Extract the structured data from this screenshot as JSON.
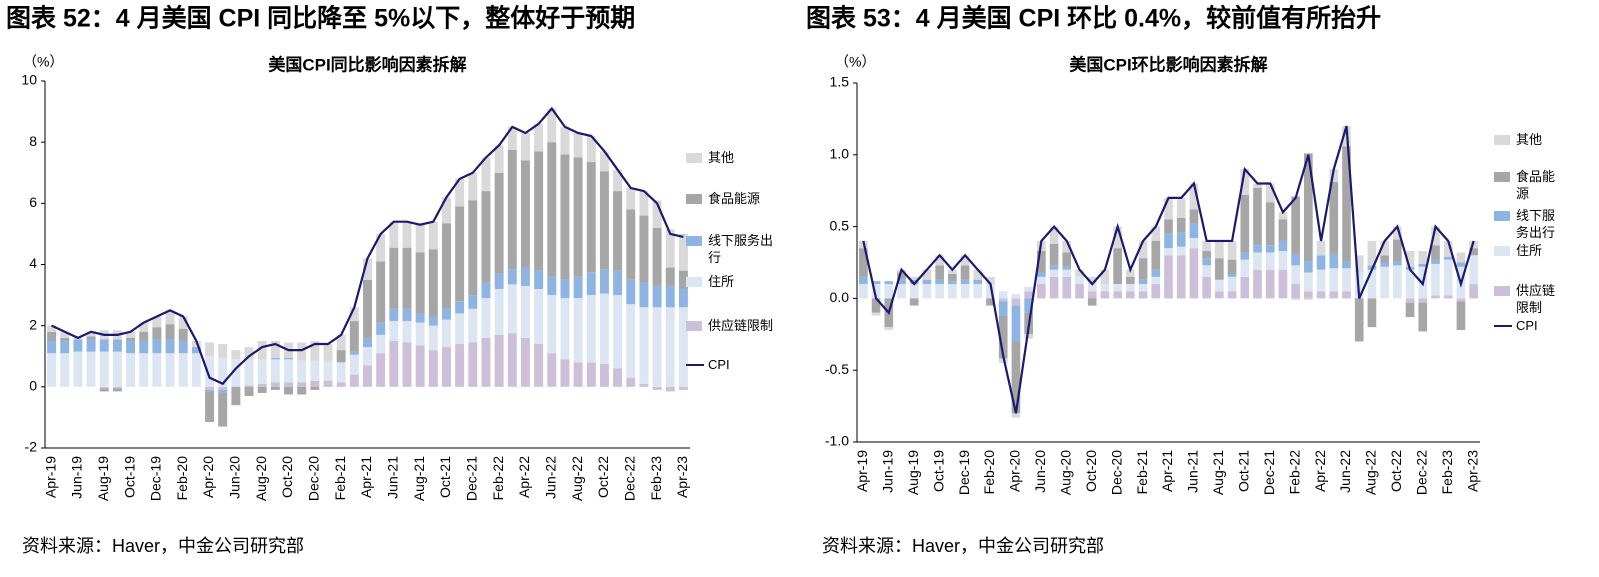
{
  "chart_data": [
    {
      "type": "bar",
      "caption": "图表 52：4 月美国 CPI 同比降至 5%以下，整体好于预期",
      "title": "美国CPI同比影响因素拆解",
      "y_unit": "（%）",
      "source": "资料来源：Haver，中金公司研究部",
      "categories": [
        "Apr-19",
        null,
        "Jun-19",
        null,
        "Aug-19",
        null,
        "Oct-19",
        null,
        "Dec-19",
        null,
        "Feb-20",
        null,
        "Apr-20",
        null,
        "Jun-20",
        null,
        "Aug-20",
        null,
        "Oct-20",
        null,
        "Dec-20",
        null,
        "Feb-21",
        null,
        "Apr-21",
        null,
        "Jun-21",
        null,
        "Aug-21",
        null,
        "Oct-21",
        null,
        "Dec-21",
        null,
        "Feb-22",
        null,
        "Apr-22",
        null,
        "Jun-22",
        null,
        "Aug-22",
        null,
        "Oct-22",
        null,
        "Dec-22",
        null,
        "Feb-23",
        null,
        "Apr-23"
      ],
      "ylim": [
        -2,
        10
      ],
      "yticks": [
        -2,
        0,
        2,
        4,
        6,
        8,
        10
      ],
      "negative_tick_color": "#ff0000",
      "series": [
        {
          "name": "供应链限制",
          "color": "#cdbfd9",
          "values": [
            0,
            0,
            0,
            0,
            -0.05,
            -0.05,
            0,
            0,
            0,
            0,
            0,
            0,
            -0.1,
            -0.1,
            0,
            0.05,
            0.1,
            0.15,
            0.15,
            0.15,
            0.2,
            0.2,
            0.15,
            0.4,
            0.7,
            1.1,
            1.5,
            1.45,
            1.35,
            1.2,
            1.3,
            1.4,
            1.45,
            1.6,
            1.7,
            1.75,
            1.6,
            1.4,
            1.1,
            0.9,
            0.8,
            0.8,
            0.75,
            0.6,
            0.3,
            0.1,
            -0.1,
            -0.15,
            -0.1
          ]
        },
        {
          "name": "住所",
          "color": "#dce6f2",
          "values": [
            1.1,
            1.1,
            1.15,
            1.15,
            1.15,
            1.15,
            1.1,
            1.1,
            1.1,
            1.1,
            1.1,
            1.1,
            1.0,
            0.95,
            0.9,
            0.85,
            0.8,
            0.75,
            0.75,
            0.7,
            0.65,
            0.65,
            0.65,
            0.65,
            0.6,
            0.6,
            0.65,
            0.7,
            0.75,
            0.8,
            0.9,
            1.0,
            1.1,
            1.3,
            1.5,
            1.6,
            1.7,
            1.8,
            1.9,
            2.0,
            2.1,
            2.2,
            2.3,
            2.4,
            2.4,
            2.5,
            2.6,
            2.6,
            2.6
          ]
        },
        {
          "name": "线下服务出行",
          "color": "#8eb4e3",
          "values": [
            0.4,
            0.4,
            0.4,
            0.4,
            0.4,
            0.4,
            0.4,
            0.4,
            0.45,
            0.45,
            0.4,
            0.2,
            -0.05,
            -0.1,
            0,
            0,
            0,
            0.05,
            0.05,
            0,
            0,
            0,
            0,
            0.1,
            0.3,
            0.4,
            0.4,
            0.4,
            0.3,
            0.3,
            0.35,
            0.4,
            0.45,
            0.5,
            0.5,
            0.5,
            0.6,
            0.6,
            0.6,
            0.6,
            0.7,
            0.75,
            0.8,
            0.8,
            0.8,
            0.8,
            0.7,
            0.7,
            0.6
          ]
        },
        {
          "name": "食品能源",
          "color": "#a6a6a6",
          "values": [
            0.3,
            0.1,
            0,
            0.1,
            -0.1,
            -0.1,
            0.1,
            0.3,
            0.4,
            0.5,
            0.4,
            0,
            -1.0,
            -1.1,
            -0.6,
            -0.3,
            -0.2,
            -0.1,
            -0.25,
            -0.25,
            -0.1,
            0,
            0.4,
            1.0,
            1.9,
            2.0,
            2.0,
            2.0,
            2.0,
            2.2,
            2.8,
            3.1,
            3.1,
            3.0,
            3.3,
            3.9,
            3.5,
            3.9,
            4.4,
            4.1,
            3.9,
            3.6,
            3.2,
            2.6,
            2.3,
            2.2,
            1.9,
            0.6,
            0.6
          ]
        },
        {
          "name": "其他",
          "color": "#d9d9d9",
          "values": [
            0.2,
            0.2,
            0.05,
            0.15,
            0.3,
            0.3,
            0.2,
            0.3,
            0.35,
            0.45,
            0.4,
            0.2,
            0.45,
            0.45,
            0.3,
            0.4,
            0.6,
            0.55,
            0.5,
            0.6,
            0.65,
            0.55,
            0.5,
            0.45,
            0.7,
            0.9,
            0.85,
            0.85,
            0.9,
            0.9,
            0.85,
            0.9,
            0.9,
            1.1,
            0.9,
            0.75,
            0.9,
            0.9,
            1.1,
            0.9,
            0.8,
            0.85,
            0.65,
            0.7,
            0.7,
            0.8,
            0.9,
            1.25,
            1.2
          ]
        },
        {
          "name": "CPI",
          "type": "line",
          "color": "#1a1a6e",
          "values": [
            2.0,
            1.8,
            1.6,
            1.8,
            1.7,
            1.7,
            1.8,
            2.1,
            2.3,
            2.5,
            2.3,
            1.5,
            0.3,
            0.1,
            0.6,
            1.0,
            1.3,
            1.4,
            1.2,
            1.2,
            1.4,
            1.4,
            1.7,
            2.6,
            4.2,
            5.0,
            5.4,
            5.4,
            5.3,
            5.4,
            6.2,
            6.8,
            7.0,
            7.5,
            7.9,
            8.5,
            8.3,
            8.6,
            9.1,
            8.5,
            8.3,
            8.2,
            7.7,
            7.1,
            6.5,
            6.4,
            6.0,
            5.0,
            4.9
          ]
        }
      ]
    },
    {
      "type": "bar",
      "caption": "图表 53：4 月美国 CPI 环比 0.4%，较前值有所抬升",
      "title": "美国CPI环比影响因素拆解",
      "y_unit": "（%）",
      "source": "资料来源：Haver，中金公司研究部",
      "categories": [
        "Apr-19",
        null,
        "Jun-19",
        null,
        "Aug-19",
        null,
        "Oct-19",
        null,
        "Dec-19",
        null,
        "Feb-20",
        null,
        "Apr-20",
        null,
        "Jun-20",
        null,
        "Aug-20",
        null,
        "Oct-20",
        null,
        "Dec-20",
        null,
        "Feb-21",
        null,
        "Apr-21",
        null,
        "Jun-21",
        null,
        "Aug-21",
        null,
        "Oct-21",
        null,
        "Dec-21",
        null,
        "Feb-22",
        null,
        "Apr-22",
        null,
        "Jun-22",
        null,
        "Aug-22",
        null,
        "Oct-22",
        null,
        "Dec-22",
        null,
        "Feb-23",
        null,
        "Apr-23"
      ],
      "ylim": [
        -1,
        1.5
      ],
      "yticks": [
        {
          "value": -1,
          "label": "-1.0"
        },
        -0.5,
        {
          "value": 0,
          "label": "0.0"
        },
        0.5,
        {
          "value": 1,
          "label": "1.0"
        },
        1.5
      ],
      "negative_tick_color": "#ff0000",
      "series": [
        {
          "name": "供应链限制",
          "color": "#cdbfd9",
          "values": [
            0,
            0,
            0,
            0,
            0,
            0,
            0,
            0,
            0,
            0,
            0,
            -0.02,
            -0.05,
            0.05,
            0.1,
            0.15,
            0.15,
            0.1,
            0.05,
            0.05,
            0.05,
            0.05,
            0.05,
            0.1,
            0.3,
            0.3,
            0.35,
            0.15,
            0.05,
            0.05,
            0.15,
            0.2,
            0.2,
            0.2,
            0.1,
            0.05,
            0.05,
            0.05,
            0.05,
            0,
            0,
            0,
            0,
            -0.03,
            -0.03,
            0.02,
            0.02,
            -0.02,
            0.1
          ]
        },
        {
          "name": "住所",
          "color": "#dce6f2",
          "values": [
            0.1,
            0.1,
            0.1,
            0.1,
            0.1,
            0.1,
            0.1,
            0.1,
            0.1,
            0.1,
            0.1,
            0.05,
            0.03,
            0.03,
            0.05,
            0.05,
            0.05,
            0.05,
            0.05,
            0.05,
            0.05,
            0.05,
            0.05,
            0.05,
            0.05,
            0.06,
            0.07,
            0.08,
            0.08,
            0.1,
            0.12,
            0.12,
            0.12,
            0.13,
            0.13,
            0.13,
            0.15,
            0.16,
            0.16,
            0.18,
            0.2,
            0.22,
            0.23,
            0.2,
            0.22,
            0.22,
            0.25,
            0.22,
            0.2
          ]
        },
        {
          "name": "线下服务出行",
          "color": "#8eb4e3",
          "values": [
            0.05,
            0.02,
            0.02,
            0.03,
            0.03,
            0.03,
            0.03,
            0.02,
            0.03,
            0.03,
            0,
            -0.1,
            -0.25,
            -0.1,
            0.03,
            0.03,
            0.02,
            0,
            0,
            0,
            0,
            0,
            0.03,
            0.05,
            0.1,
            0.1,
            0.1,
            0.05,
            0,
            0.02,
            0.05,
            0.05,
            0.05,
            0.07,
            0.08,
            0.08,
            0.1,
            0.1,
            0.05,
            0,
            0.03,
            0.03,
            0.03,
            0.02,
            0.02,
            0.03,
            0.02,
            0.03,
            0
          ]
        },
        {
          "name": "食品能源",
          "color": "#a6a6a6",
          "values": [
            0.2,
            -0.1,
            -0.2,
            0.05,
            -0.05,
            0,
            0.1,
            0.05,
            0.1,
            0,
            -0.05,
            -0.3,
            -0.5,
            -0.15,
            0.15,
            0.15,
            0.1,
            0,
            -0.05,
            0,
            0.25,
            0.05,
            0.15,
            0.2,
            0.1,
            0.1,
            0.1,
            0.05,
            0.15,
            0.1,
            0.4,
            0.4,
            0.3,
            0.15,
            0.4,
            0.75,
            0,
            0.5,
            0.8,
            -0.3,
            -0.2,
            0.05,
            0.15,
            -0.1,
            -0.2,
            0.1,
            0,
            -0.2,
            0.05
          ]
        },
        {
          "name": "其他",
          "color": "#d9d9d9",
          "values": [
            0.05,
            -0.02,
            -0.02,
            0.02,
            0.02,
            0.07,
            0.07,
            0.03,
            0.07,
            0.07,
            0.05,
            -0.03,
            -0.03,
            -0.03,
            0.07,
            0.12,
            0.08,
            0.05,
            0.05,
            0.1,
            0.15,
            0.05,
            0.12,
            0.1,
            0.15,
            0.14,
            0.18,
            0.07,
            0.12,
            0.13,
            0.18,
            0.03,
            0.13,
            0.05,
            -0.01,
            -0.01,
            0.1,
            0.09,
            0.14,
            0.12,
            0.17,
            0.1,
            0.09,
            0.11,
            0.09,
            0.13,
            0.11,
            0.07,
            0.05
          ]
        },
        {
          "name": "CPI",
          "type": "line",
          "color": "#1a1a6e",
          "values": [
            0.4,
            0,
            -0.1,
            0.2,
            0.1,
            0.2,
            0.3,
            0.2,
            0.3,
            0.2,
            0.1,
            -0.4,
            -0.8,
            -0.2,
            0.4,
            0.5,
            0.4,
            0.2,
            0.1,
            0.2,
            0.5,
            0.2,
            0.4,
            0.5,
            0.7,
            0.7,
            0.8,
            0.4,
            0.4,
            0.4,
            0.9,
            0.8,
            0.8,
            0.6,
            0.7,
            1.0,
            0.4,
            0.9,
            1.2,
            0,
            0.2,
            0.4,
            0.5,
            0.2,
            0.1,
            0.5,
            0.4,
            0.1,
            0.4
          ]
        }
      ]
    }
  ]
}
